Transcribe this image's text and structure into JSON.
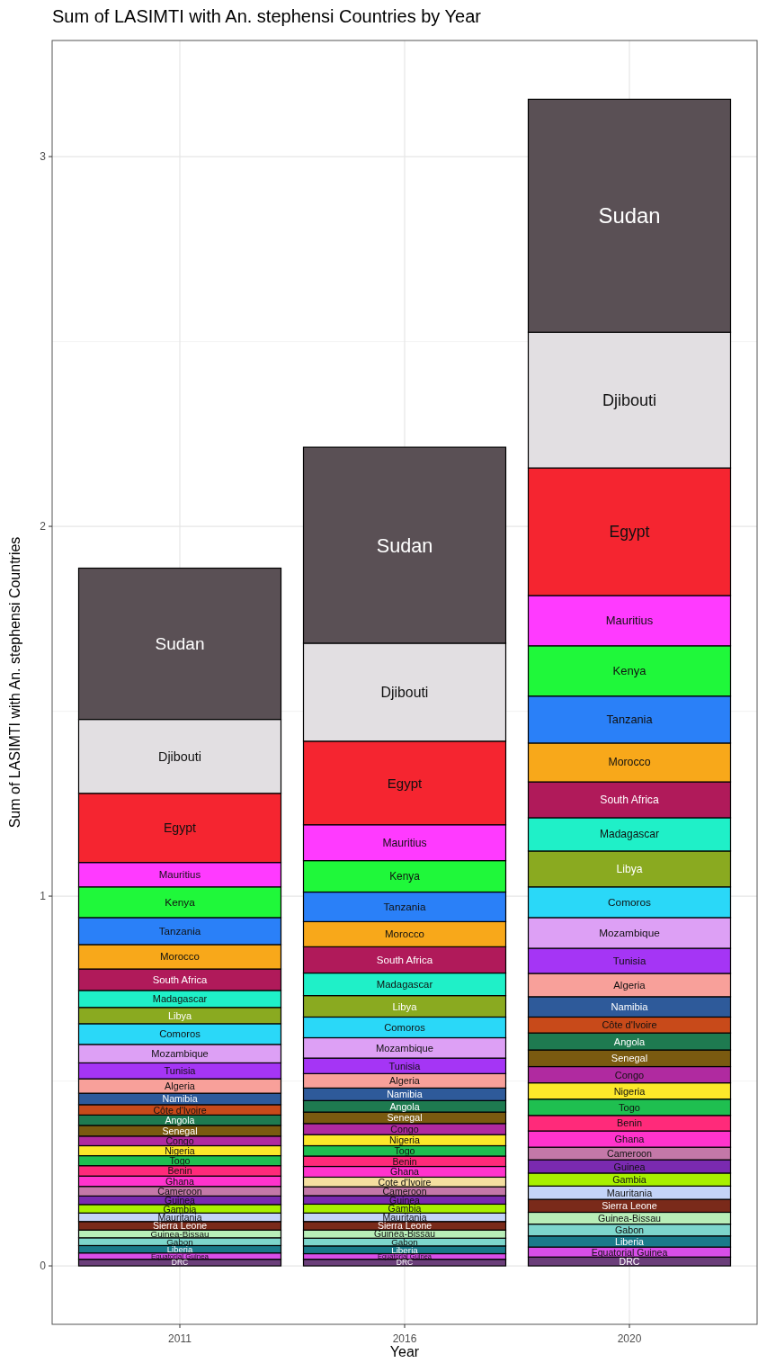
{
  "chart_data": {
    "type": "bar",
    "stacked": true,
    "title": "Sum of LASIMTI with An. stephensi Countries by Year",
    "xlabel": "Year",
    "ylabel": "Sum of LASIMTI with An. stephensi Countries",
    "categories": [
      "2011",
      "2016",
      "2020"
    ],
    "ylim": [
      -0.158,
      3.314
    ],
    "yticks": [
      0,
      1,
      2,
      3
    ],
    "grid": true,
    "series": [
      {
        "name": "DRC",
        "color": "#6b3f7a",
        "values": [
          0.018,
          0.018,
          0.024
        ]
      },
      {
        "name": "Equatorial Guinea",
        "color": "#d84ee8",
        "values": [
          0.017,
          0.015,
          0.027
        ]
      },
      {
        "name": "Liberia",
        "color": "#1a7a8a",
        "values": [
          0.02,
          0.021,
          0.03
        ]
      },
      {
        "name": "Gabon",
        "color": "#7dd6cc",
        "values": [
          0.021,
          0.021,
          0.032
        ]
      },
      {
        "name": "Guinea-Bissau",
        "color": "#b8eeb8",
        "values": [
          0.021,
          0.022,
          0.032
        ]
      },
      {
        "name": "Sierra Leone",
        "color": "#7a2a1a",
        "values": [
          0.023,
          0.023,
          0.035
        ]
      },
      {
        "name": "Mauritania",
        "color": "#c4d4f8",
        "values": [
          0.023,
          0.023,
          0.036
        ]
      },
      {
        "name": "Gambia",
        "color": "#a8f000",
        "values": [
          0.023,
          0.024,
          0.035
        ]
      },
      {
        "name": "Guinea",
        "color": "#7a2ab0",
        "values": [
          0.023,
          0.023,
          0.036
        ]
      },
      {
        "name": "Cameroon",
        "color": "#c478a8",
        "values": [
          0.026,
          0.024,
          0.034
        ]
      },
      {
        "name": "Cote d'Ivoire",
        "color": "#f5dfa0",
        "values": [
          null,
          0.026,
          null
        ]
      },
      {
        "name": "Ghana",
        "color": "#ff33cc",
        "values": [
          0.028,
          0.029,
          0.044
        ]
      },
      {
        "name": "Benin",
        "color": "#ff2a7a",
        "values": [
          0.028,
          0.028,
          0.042
        ]
      },
      {
        "name": "Togo",
        "color": "#1fbf50",
        "values": [
          0.027,
          0.028,
          0.044
        ]
      },
      {
        "name": "Nigeria",
        "color": "#fce82a",
        "values": [
          0.027,
          0.03,
          0.044
        ]
      },
      {
        "name": "Congo",
        "color": "#b02aa0",
        "values": [
          0.026,
          0.03,
          0.044
        ]
      },
      {
        "name": "Senegal",
        "color": "#7a5a10",
        "values": [
          0.029,
          0.031,
          0.045
        ]
      },
      {
        "name": "Angola",
        "color": "#1e7a50",
        "values": [
          0.028,
          0.031,
          0.046
        ]
      },
      {
        "name": "Côte d'Ivoire",
        "color": "#c84a1a",
        "values": [
          0.028,
          null,
          0.043
        ]
      },
      {
        "name": "Namibia",
        "color": "#2e5a9a",
        "values": [
          0.031,
          0.034,
          0.055
        ]
      },
      {
        "name": "Algeria",
        "color": "#f8a09a",
        "values": [
          0.039,
          0.039,
          0.063
        ]
      },
      {
        "name": "Tunisia",
        "color": "#a535f5",
        "values": [
          0.043,
          0.042,
          0.068
        ]
      },
      {
        "name": "Mozambique",
        "color": "#dda0f5",
        "values": [
          0.05,
          0.055,
          0.083
        ]
      },
      {
        "name": "Comoros",
        "color": "#2ad8f8",
        "values": [
          0.056,
          0.056,
          0.083
        ]
      },
      {
        "name": "Libya",
        "color": "#8aaa20",
        "values": [
          0.044,
          0.058,
          0.097
        ]
      },
      {
        "name": "Madagascar",
        "color": "#1ff0c8",
        "values": [
          0.046,
          0.061,
          0.09
        ]
      },
      {
        "name": "South Africa",
        "color": "#b01a5a",
        "values": [
          0.058,
          0.071,
          0.097
        ]
      },
      {
        "name": "Morocco",
        "color": "#f8a81a",
        "values": [
          0.066,
          0.068,
          0.105
        ]
      },
      {
        "name": "Tanzania",
        "color": "#2a80f8",
        "values": [
          0.073,
          0.08,
          0.127
        ]
      },
      {
        "name": "Kenya",
        "color": "#1ff83a",
        "values": [
          0.083,
          0.085,
          0.136
        ]
      },
      {
        "name": "Mauritius",
        "color": "#ff3aff",
        "values": [
          0.066,
          0.097,
          0.136
        ]
      },
      {
        "name": "Egypt",
        "color": "#f52530",
        "values": [
          0.187,
          0.226,
          0.345
        ]
      },
      {
        "name": "Djibouti",
        "color": "#e2dfe2",
        "values": [
          0.2,
          0.265,
          0.367
        ]
      },
      {
        "name": "Sudan",
        "color": "#5a5055",
        "values": [
          0.409,
          0.53,
          0.63
        ]
      }
    ]
  }
}
